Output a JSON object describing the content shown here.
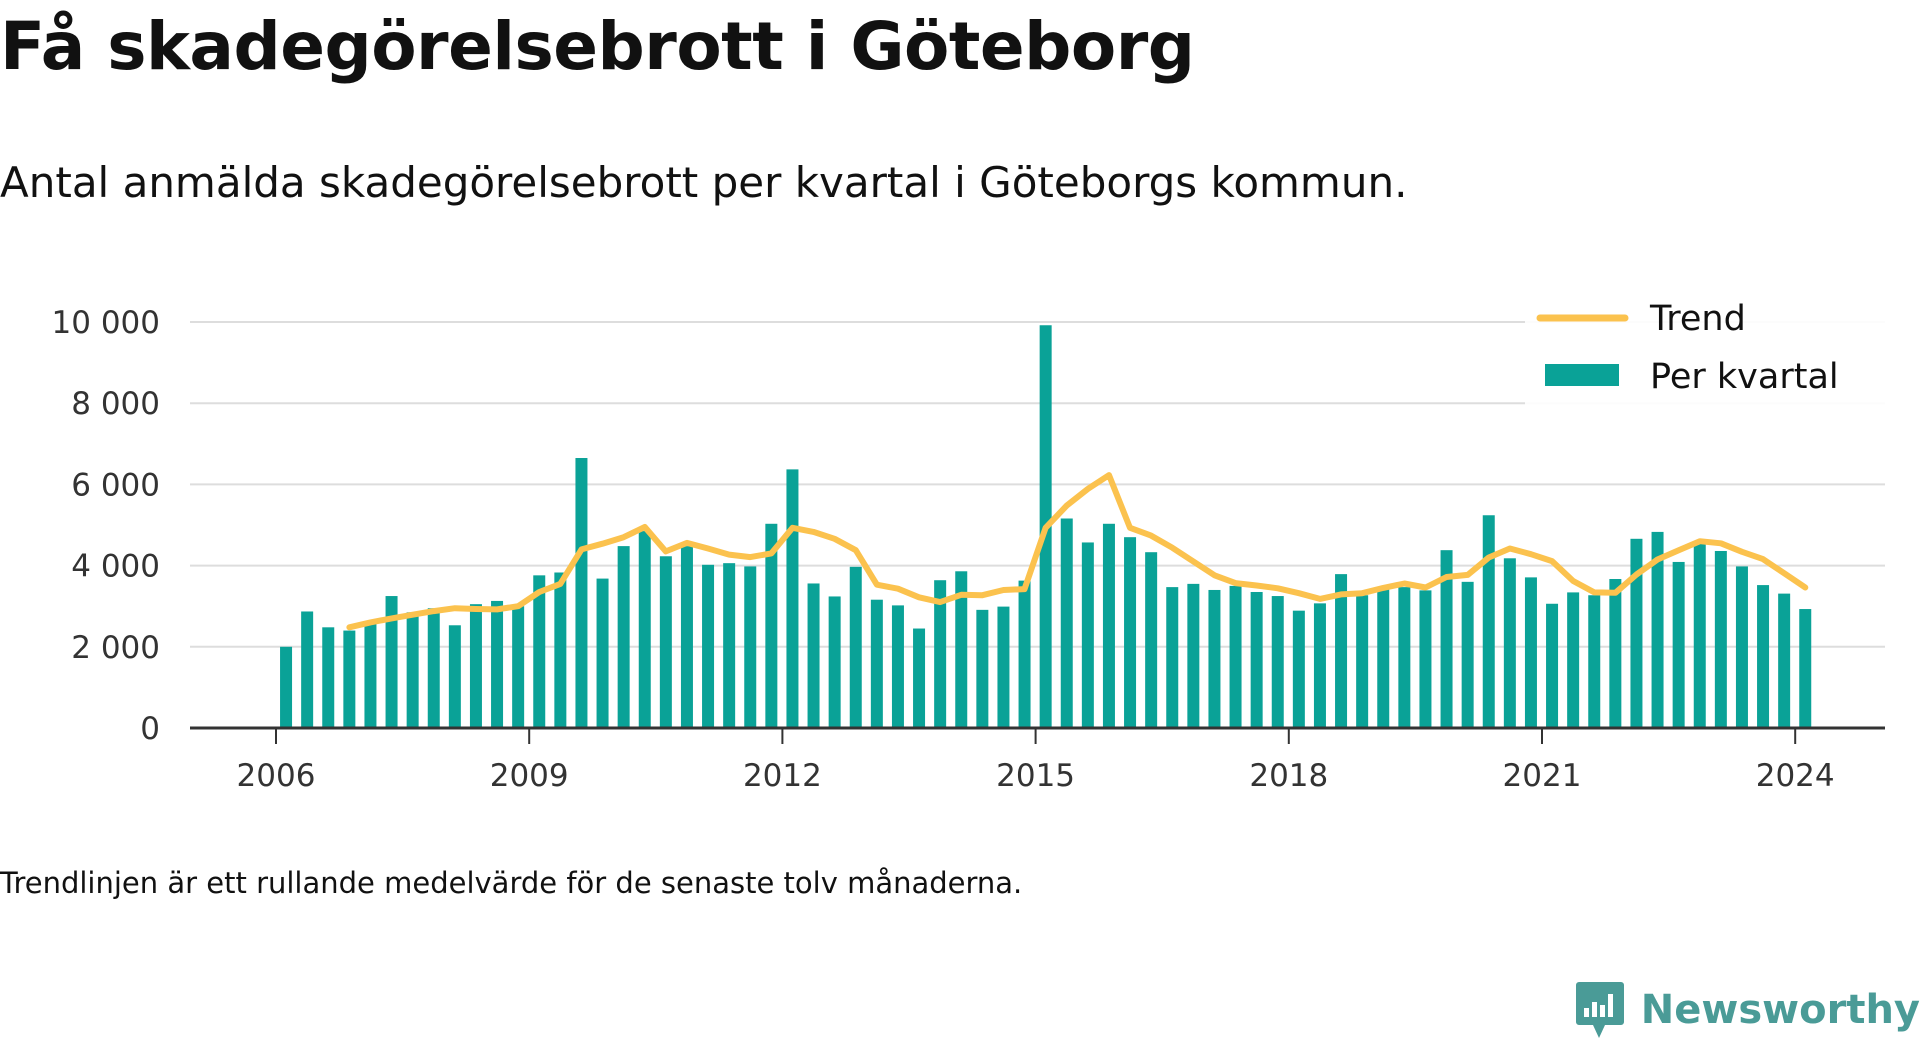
{
  "title": "Få skadegörelsebrott i Göteborg",
  "subtitle": "Antal anmälda skadegörelsebrott per kvartal i Göteborgs kommun.",
  "note": "Trendlinjen är ett rullande medelvärde för de senaste tolv månaderna.",
  "brand": {
    "name": "Newsworthy",
    "icon": "newsworthy-logo-icon",
    "color": "#4a9b97"
  },
  "colors": {
    "bars": "#0aa297",
    "trend": "#fbc24e",
    "grid": "#dddddd",
    "axis": "#333333"
  },
  "chart_data": {
    "type": "bar",
    "title": "Få skadegörelsebrott i Göteborg",
    "subtitle": "Antal anmälda skadegörelsebrott per kvartal i Göteborgs kommun.",
    "xlabel": "",
    "ylabel": "",
    "ylim": [
      0,
      10000
    ],
    "y_ticks": [
      0,
      2000,
      4000,
      6000,
      8000,
      10000
    ],
    "y_tick_labels": [
      "0",
      "2 000",
      "4 000",
      "6 000",
      "8 000",
      "10 000"
    ],
    "x_ticks": [
      2006,
      2009,
      2012,
      2015,
      2018,
      2021,
      2024
    ],
    "x_tick_labels": [
      "2006",
      "2009",
      "2012",
      "2015",
      "2018",
      "2021",
      "2024"
    ],
    "grid": true,
    "legend_position": "top-right",
    "legend": [
      "Trend",
      "Per kvartal"
    ],
    "categories": [
      "2006 Q1",
      "2006 Q2",
      "2006 Q3",
      "2006 Q4",
      "2007 Q1",
      "2007 Q2",
      "2007 Q3",
      "2007 Q4",
      "2008 Q1",
      "2008 Q2",
      "2008 Q3",
      "2008 Q4",
      "2009 Q1",
      "2009 Q2",
      "2009 Q3",
      "2009 Q4",
      "2010 Q1",
      "2010 Q2",
      "2010 Q3",
      "2010 Q4",
      "2011 Q1",
      "2011 Q2",
      "2011 Q3",
      "2011 Q4",
      "2012 Q1",
      "2012 Q2",
      "2012 Q3",
      "2012 Q4",
      "2013 Q1",
      "2013 Q2",
      "2013 Q3",
      "2013 Q4",
      "2014 Q1",
      "2014 Q2",
      "2014 Q3",
      "2014 Q4",
      "2015 Q1",
      "2015 Q2",
      "2015 Q3",
      "2015 Q4",
      "2016 Q1",
      "2016 Q2",
      "2016 Q3",
      "2016 Q4",
      "2017 Q1",
      "2017 Q2",
      "2017 Q3",
      "2017 Q4",
      "2018 Q1",
      "2018 Q2",
      "2018 Q3",
      "2018 Q4",
      "2019 Q1",
      "2019 Q2",
      "2019 Q3",
      "2019 Q4",
      "2020 Q1",
      "2020 Q2",
      "2020 Q3",
      "2020 Q4",
      "2021 Q1",
      "2021 Q2",
      "2021 Q3",
      "2021 Q4",
      "2022 Q1",
      "2022 Q2",
      "2022 Q3",
      "2022 Q4",
      "2023 Q1",
      "2023 Q2",
      "2023 Q3",
      "2023 Q4",
      "2024 Q1"
    ],
    "series": [
      {
        "name": "Per kvartal",
        "type": "bar",
        "values": [
          2000,
          2870,
          2480,
          2400,
          2600,
          3250,
          2850,
          2950,
          2530,
          3050,
          3130,
          3000,
          3760,
          3830,
          6650,
          3680,
          4480,
          4850,
          4230,
          4480,
          4020,
          4060,
          3980,
          5030,
          6370,
          3560,
          3240,
          3970,
          3160,
          3020,
          2450,
          3640,
          3860,
          2910,
          2990,
          3630,
          9920,
          5160,
          4570,
          5030,
          4700,
          4330,
          3470,
          3550,
          3400,
          3500,
          3350,
          3250,
          2890,
          3070,
          3790,
          3270,
          3420,
          3470,
          3390,
          4380,
          3600,
          5240,
          4180,
          3710,
          3060,
          3340,
          3270,
          3670,
          4660,
          4830,
          4090,
          4540,
          4360,
          3980,
          3520,
          3310,
          2930
        ]
      },
      {
        "name": "Trend",
        "type": "line",
        "values": [
          null,
          null,
          null,
          2480,
          2600,
          2700,
          2790,
          2880,
          2950,
          2930,
          2920,
          3000,
          3350,
          3550,
          4400,
          4540,
          4700,
          4950,
          4350,
          4560,
          4420,
          4270,
          4210,
          4300,
          4930,
          4830,
          4660,
          4380,
          3530,
          3430,
          3220,
          3100,
          3280,
          3270,
          3400,
          3420,
          4930,
          5480,
          5890,
          6230,
          4930,
          4740,
          4440,
          4100,
          3760,
          3570,
          3510,
          3440,
          3320,
          3180,
          3290,
          3320,
          3450,
          3560,
          3460,
          3720,
          3770,
          4200,
          4420,
          4280,
          4110,
          3620,
          3340,
          3330,
          3780,
          4150,
          4380,
          4600,
          4550,
          4340,
          4160,
          3810,
          3460
        ]
      }
    ]
  }
}
